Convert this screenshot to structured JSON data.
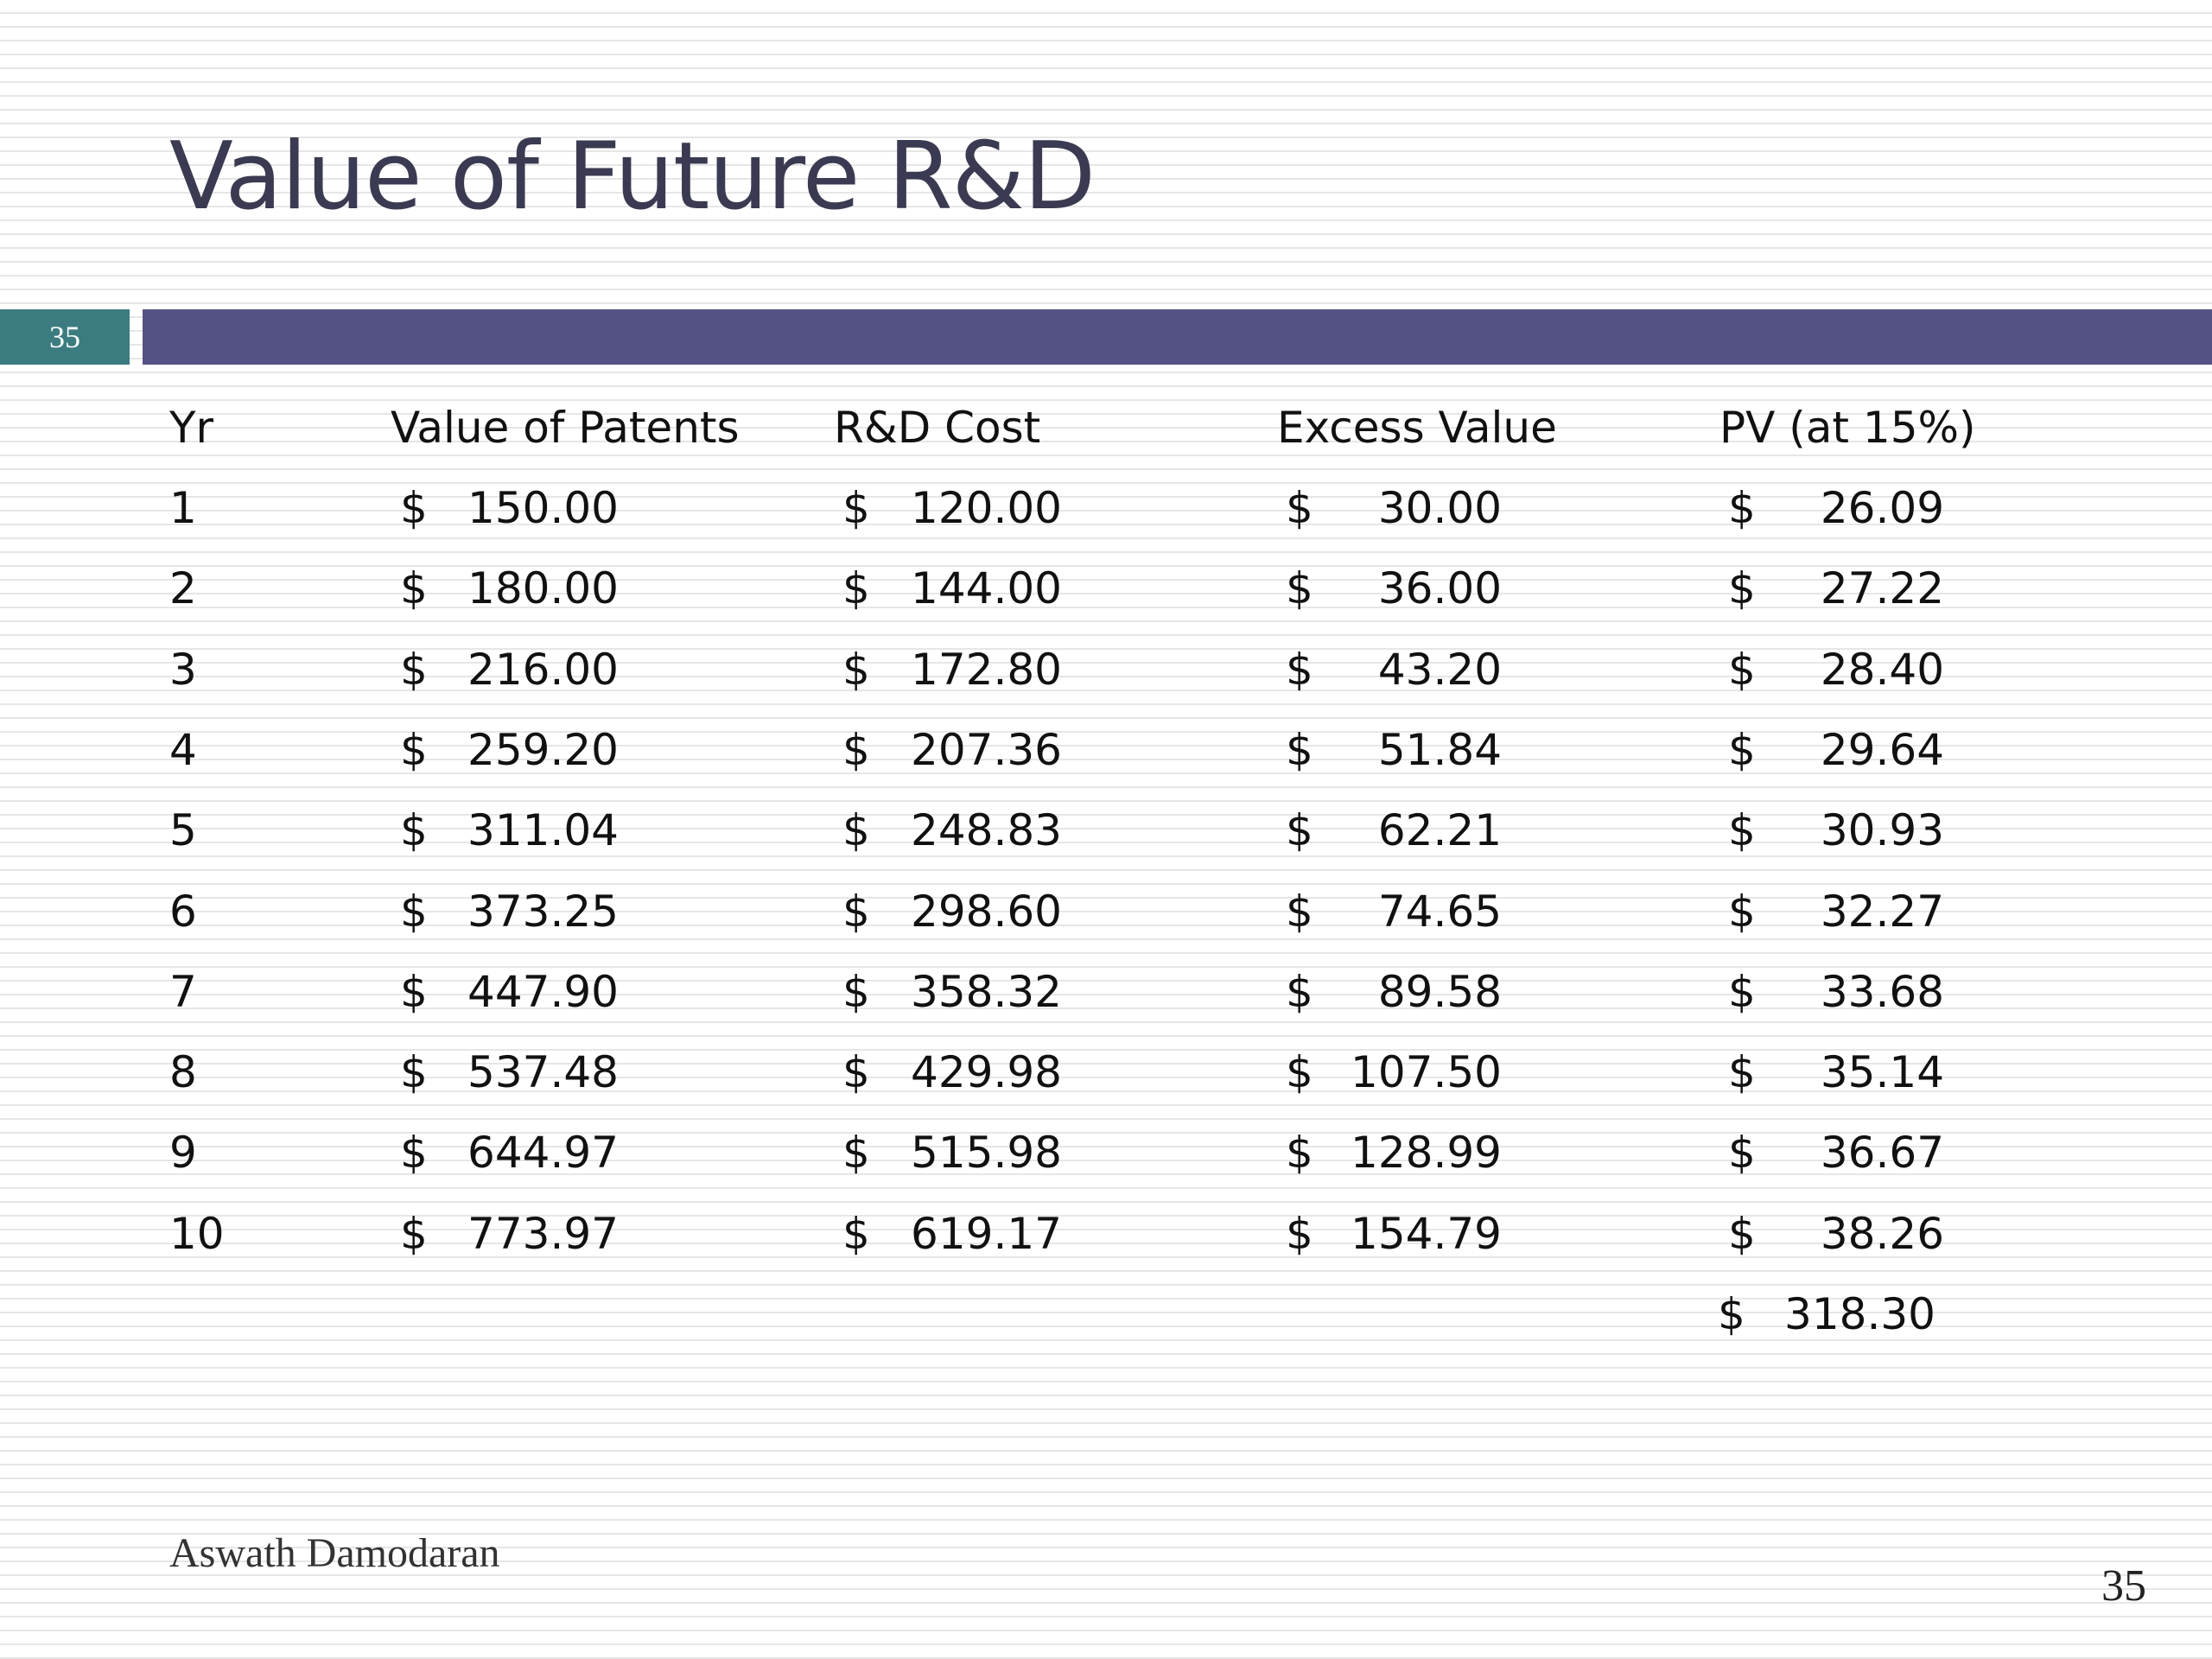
{
  "slide": {
    "title": "Value of Future R&D",
    "number_badge": "35",
    "author": "Aswath Damodaran",
    "page_number": "35"
  },
  "table": {
    "columns": [
      "Yr",
      "Value of Patents",
      "R&D Cost",
      "Excess Value",
      "PV  (at 15%)"
    ],
    "rows": [
      {
        "yr": "1",
        "patents": "150.00",
        "cost": "120.00",
        "excess": "30.00",
        "pv": "26.09"
      },
      {
        "yr": "2",
        "patents": "180.00",
        "cost": "144.00",
        "excess": "36.00",
        "pv": "27.22"
      },
      {
        "yr": "3",
        "patents": "216.00",
        "cost": "172.80",
        "excess": "43.20",
        "pv": "28.40"
      },
      {
        "yr": "4",
        "patents": "259.20",
        "cost": "207.36",
        "excess": "51.84",
        "pv": "29.64"
      },
      {
        "yr": "5",
        "patents": "311.04",
        "cost": "248.83",
        "excess": "62.21",
        "pv": "30.93"
      },
      {
        "yr": "6",
        "patents": "373.25",
        "cost": "298.60",
        "excess": "74.65",
        "pv": "32.27"
      },
      {
        "yr": "7",
        "patents": "447.90",
        "cost": "358.32",
        "excess": "89.58",
        "pv": "33.68"
      },
      {
        "yr": "8",
        "patents": "537.48",
        "cost": "429.98",
        "excess": "107.50",
        "pv": "35.14"
      },
      {
        "yr": "9",
        "patents": "644.97",
        "cost": "515.98",
        "excess": "128.99",
        "pv": "36.67"
      },
      {
        "yr": "10",
        "patents": "773.97",
        "cost": "619.17",
        "excess": "154.79",
        "pv": "38.26"
      }
    ],
    "currency_symbol": "$",
    "total_pv": "318.30"
  },
  "colors": {
    "title_text": "#3a3a52",
    "title_bar": "#545285",
    "number_badge": "#3b7c80"
  }
}
